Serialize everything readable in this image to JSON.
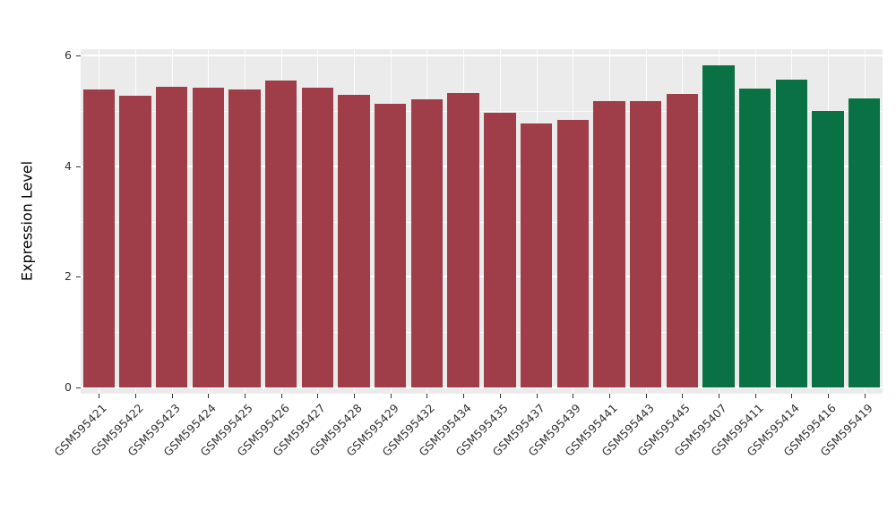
{
  "chart_data": {
    "type": "bar",
    "title": "",
    "ylabel": "Expression Level",
    "xlabel": "",
    "ylim": [
      0,
      6
    ],
    "yticks": [
      0,
      2,
      4,
      6
    ],
    "minor_ticks": [
      1,
      3,
      5
    ],
    "grid": "on",
    "legend_position": "none",
    "categories": [
      "GSM595421",
      "GSM595422",
      "GSM595423",
      "GSM595424",
      "GSM595425",
      "GSM595426",
      "GSM595427",
      "GSM595428",
      "GSM595429",
      "GSM595432",
      "GSM595434",
      "GSM595435",
      "GSM595437",
      "GSM595439",
      "GSM595441",
      "GSM595443",
      "GSM595445",
      "GSM595407",
      "GSM595411",
      "GSM595414",
      "GSM595416",
      "GSM595419"
    ],
    "values": [
      5.38,
      5.28,
      5.44,
      5.42,
      5.39,
      5.55,
      5.41,
      5.29,
      5.13,
      5.2,
      5.32,
      4.97,
      4.77,
      4.84,
      5.17,
      5.17,
      5.3,
      5.83,
      5.4,
      5.57,
      5.0,
      5.22
    ],
    "groups": [
      "group1",
      "group1",
      "group1",
      "group1",
      "group1",
      "group1",
      "group1",
      "group1",
      "group1",
      "group1",
      "group1",
      "group1",
      "group1",
      "group1",
      "group1",
      "group1",
      "group1",
      "group2",
      "group2",
      "group2",
      "group2",
      "group2"
    ],
    "group_colors": {
      "group1": "#9F3D49",
      "group2": "#0A7144"
    },
    "panel_bg": "#EBEBEB",
    "grid_color": "#FFFFFF"
  }
}
